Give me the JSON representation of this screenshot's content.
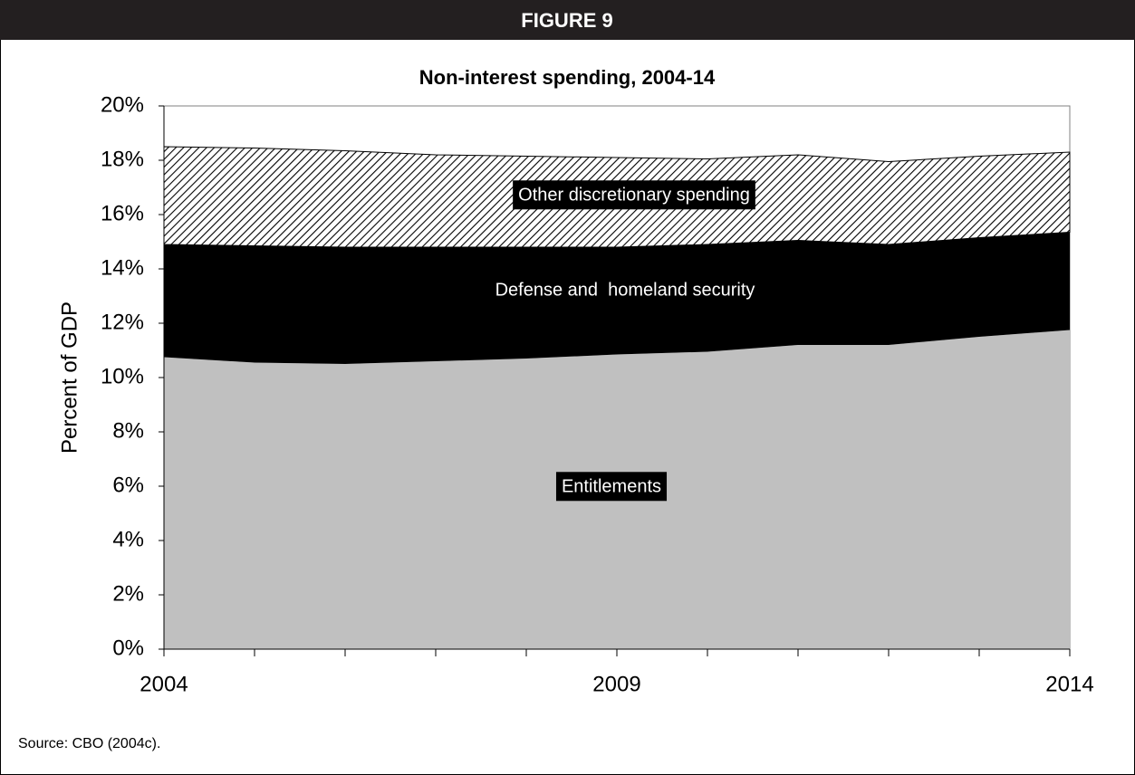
{
  "header": "FIGURE 9",
  "source": "Source: CBO (2004c).",
  "chart_data": {
    "type": "stacked_area",
    "title": "Non-interest spending, 2004-14",
    "y_label": "Percent of GDP",
    "x": [
      2004,
      2005,
      2006,
      2007,
      2008,
      2009,
      2010,
      2011,
      2012,
      2013,
      2014
    ],
    "xlim": [
      2004,
      2014
    ],
    "xticks": [
      2004,
      2009,
      2014
    ],
    "ylim": [
      0,
      20
    ],
    "yticks": [
      {
        "value": 0,
        "label": "0%"
      },
      {
        "value": 2,
        "label": "2%"
      },
      {
        "value": 4,
        "label": "4%"
      },
      {
        "value": 6,
        "label": "6%"
      },
      {
        "value": 8,
        "label": "8%"
      },
      {
        "value": 10,
        "label": "10%"
      },
      {
        "value": 12,
        "label": "12%"
      },
      {
        "value": 14,
        "label": "14%"
      },
      {
        "value": 16,
        "label": "16%"
      },
      {
        "value": 18,
        "label": "18%"
      },
      {
        "value": 20,
        "label": "20%"
      }
    ],
    "series": [
      {
        "name": "Entitlements",
        "color": "#c0c0c0",
        "values": [
          10.75,
          10.55,
          10.5,
          10.6,
          10.7,
          10.85,
          10.95,
          11.2,
          11.2,
          11.5,
          11.75
        ]
      },
      {
        "name": "Defense and  homeland security",
        "color": "#000000",
        "values": [
          4.15,
          4.3,
          4.3,
          4.2,
          4.1,
          3.95,
          3.95,
          3.85,
          3.7,
          3.65,
          3.6
        ]
      },
      {
        "name": "Other discretionary spending",
        "color": "#000000",
        "fill": "hatch",
        "values": [
          3.6,
          3.6,
          3.55,
          3.4,
          3.35,
          3.3,
          3.15,
          3.15,
          3.05,
          3.0,
          2.95
        ]
      }
    ]
  }
}
